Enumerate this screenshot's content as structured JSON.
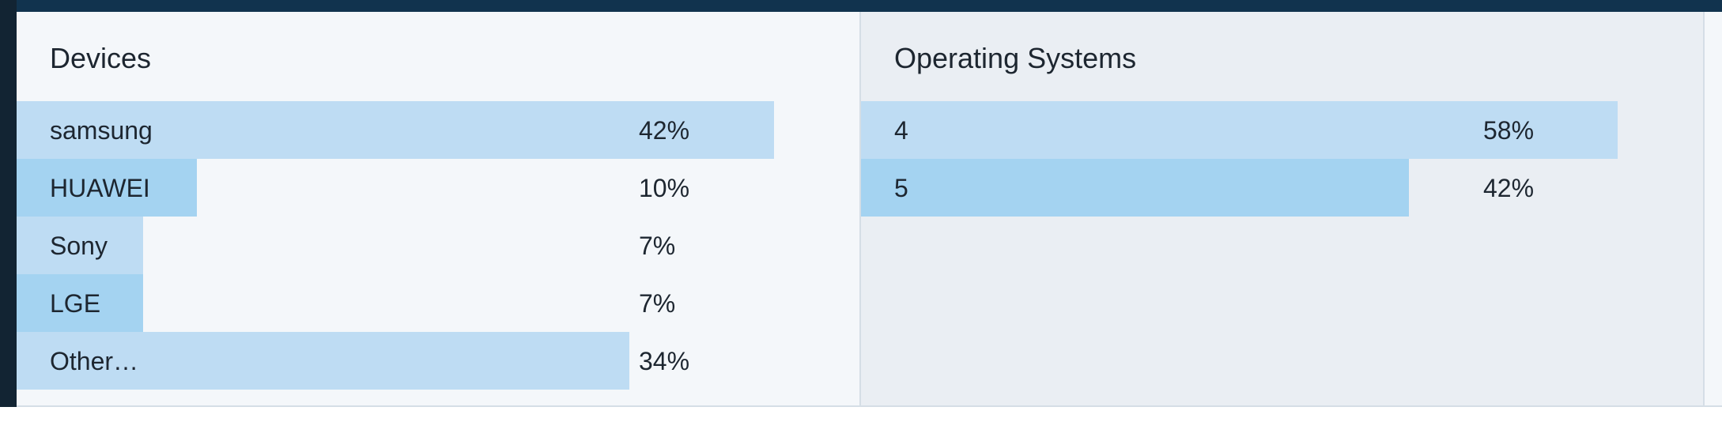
{
  "theme": {
    "page_background": "#ffffff",
    "topbar_color": "#11334e",
    "left_rail_color": "#122433",
    "panel_bg_devices": "#f4f7fa",
    "panel_bg_os": "#eaeef3",
    "divider_color": "#d5dee6",
    "text_color": "#1d2630",
    "bar_color_light": "#bedcf3",
    "bar_color_dark": "#a4d3f1"
  },
  "chart_data": [
    {
      "type": "bar",
      "orientation": "horizontal",
      "title": "Devices",
      "categories": [
        "samsung",
        "HUAWEI",
        "Sony",
        "LGE",
        "Other…"
      ],
      "values": [
        42,
        10,
        7,
        7,
        34
      ],
      "value_labels": [
        "42%",
        "10%",
        "7%",
        "7%",
        "34%"
      ],
      "unit": "%",
      "axis_ticks_visible": false,
      "grid": false,
      "legend": false,
      "max_bar_fraction_of_panel": 0.9
    },
    {
      "type": "bar",
      "orientation": "horizontal",
      "title": "Operating Systems",
      "categories": [
        "4",
        "5"
      ],
      "values": [
        58,
        42
      ],
      "value_labels": [
        "58%",
        "42%"
      ],
      "unit": "%",
      "axis_ticks_visible": false,
      "grid": false,
      "legend": false,
      "max_bar_fraction_of_panel": 0.9
    }
  ]
}
